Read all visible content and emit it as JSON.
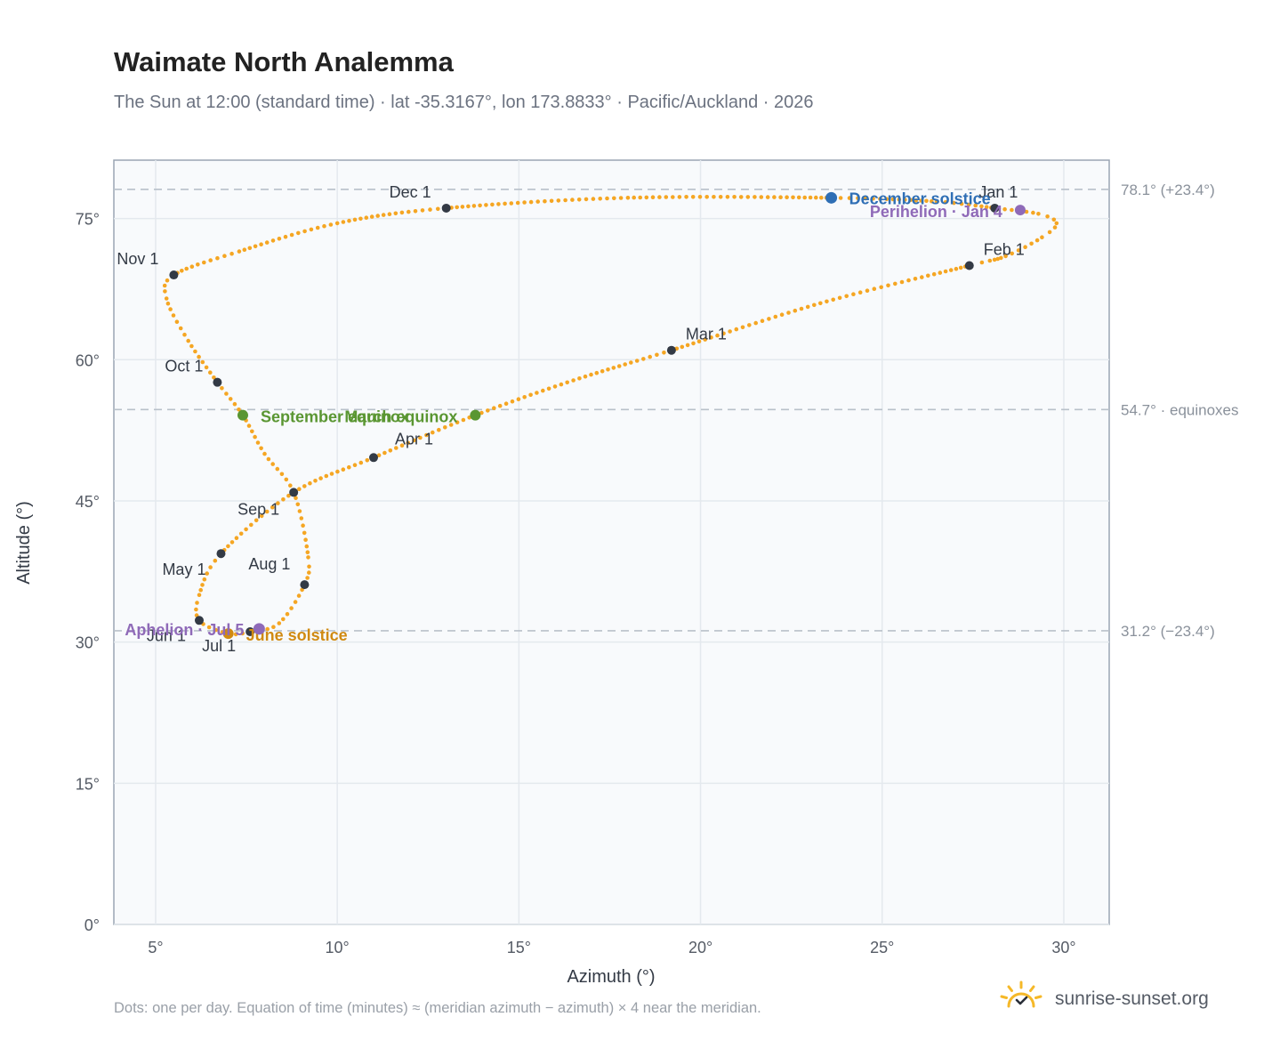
{
  "title": "Waimate North Analemma",
  "subtitle": "The Sun at 12:00 (standard time) · lat -35.3167°, lon 173.8833° · Pacific/Auckland · 2026",
  "footnote": "Dots: one per day. Equation of time (minutes) ≈ (meridian azimuth − azimuth) × 4 near the meridian.",
  "brand": {
    "name": "sunrise-sunset.org",
    "logo_icon": "sun-check-icon",
    "accent": "#f5b828"
  },
  "colors": {
    "analemma": "#f5a623",
    "month_marker": "#333a45",
    "equinox": "#5a9632",
    "december_solstice": "#2f6fb5",
    "june_solstice": "#d08a12",
    "perihelion_aphelion": "#8f6ab8",
    "reference_line": "#b9c1ca",
    "plot_bg": "#f8fafc",
    "grid": "#e4e9ee"
  },
  "chart_data": {
    "type": "scatter",
    "xlabel": "Azimuth (°)",
    "ylabel": "Altitude (°)",
    "xlim": [
      3.85,
      31.25
    ],
    "ylim": [
      0,
      81.2
    ],
    "xticks": [
      5,
      10,
      15,
      20,
      25,
      30
    ],
    "xtick_labels": [
      "5°",
      "10°",
      "15°",
      "20°",
      "25°",
      "30°"
    ],
    "yticks": [
      0,
      15,
      30,
      45,
      60,
      75
    ],
    "ytick_labels": [
      "0°",
      "15°",
      "30°",
      "45°",
      "60°",
      "75°"
    ],
    "grid": true,
    "series": [
      {
        "marker": "daily dots",
        "points": [
          {
            "x": 28.1,
            "y": 76.1
          },
          {
            "x": 29.3,
            "y": 75.5
          },
          {
            "x": 29.8,
            "y": 74.5
          },
          {
            "x": 29.4,
            "y": 73.0
          },
          {
            "x": 28.4,
            "y": 71.0
          },
          {
            "x": 27.4,
            "y": 70.0
          },
          {
            "x": 23.3,
            "y": 66.0
          },
          {
            "x": 19.2,
            "y": 61.0
          },
          {
            "x": 16.5,
            "y": 57.8
          },
          {
            "x": 13.8,
            "y": 54.1
          },
          {
            "x": 11.0,
            "y": 49.6
          },
          {
            "x": 8.8,
            "y": 45.9
          },
          {
            "x": 6.8,
            "y": 39.4
          },
          {
            "x": 6.2,
            "y": 35.0
          },
          {
            "x": 6.2,
            "y": 32.3
          },
          {
            "x": 7.0,
            "y": 30.9
          },
          {
            "x": 7.6,
            "y": 31.1
          },
          {
            "x": 8.4,
            "y": 32.0
          },
          {
            "x": 9.1,
            "y": 36.1
          },
          {
            "x": 9.2,
            "y": 39.0
          },
          {
            "x": 8.8,
            "y": 45.9
          },
          {
            "x": 8.0,
            "y": 50.0
          },
          {
            "x": 7.4,
            "y": 54.1
          },
          {
            "x": 6.7,
            "y": 57.6
          },
          {
            "x": 5.9,
            "y": 62.0
          },
          {
            "x": 5.3,
            "y": 66.5
          },
          {
            "x": 5.5,
            "y": 69.0
          },
          {
            "x": 7.3,
            "y": 71.5
          },
          {
            "x": 10.0,
            "y": 74.5
          },
          {
            "x": 13.0,
            "y": 76.1
          },
          {
            "x": 18.0,
            "y": 77.2
          },
          {
            "x": 23.6,
            "y": 77.2
          },
          {
            "x": 26.5,
            "y": 76.8
          },
          {
            "x": 28.1,
            "y": 76.1
          }
        ]
      }
    ],
    "month_markers": [
      {
        "label": "Jan 1",
        "x": 28.1,
        "y": 76.1
      },
      {
        "label": "Feb 1",
        "x": 27.4,
        "y": 70.0
      },
      {
        "label": "Mar 1",
        "x": 19.2,
        "y": 61.0
      },
      {
        "label": "Apr 1",
        "x": 11.0,
        "y": 49.6
      },
      {
        "label": "May 1",
        "x": 6.8,
        "y": 39.4
      },
      {
        "label": "Jun 1",
        "x": 6.2,
        "y": 32.3
      },
      {
        "label": "Jul 1",
        "x": 7.6,
        "y": 31.1
      },
      {
        "label": "Aug 1",
        "x": 9.1,
        "y": 36.1
      },
      {
        "label": "Sep 1",
        "x": 8.8,
        "y": 45.9
      },
      {
        "label": "Oct 1",
        "x": 6.7,
        "y": 57.6
      },
      {
        "label": "Nov 1",
        "x": 5.5,
        "y": 69.0
      },
      {
        "label": "Dec 1",
        "x": 13.0,
        "y": 76.1
      }
    ],
    "events": [
      {
        "label": "December solstice",
        "x": 23.6,
        "y": 77.2,
        "kind": "december_solstice"
      },
      {
        "label": "Perihelion · Jan 4",
        "x": 28.8,
        "y": 75.9,
        "kind": "perihelion_aphelion"
      },
      {
        "label": "March equinox",
        "x": 13.8,
        "y": 54.1,
        "kind": "equinox"
      },
      {
        "label": "September equinox",
        "x": 7.4,
        "y": 54.1,
        "kind": "equinox"
      },
      {
        "label": "June solstice",
        "x": 7.0,
        "y": 30.9,
        "kind": "june_solstice"
      },
      {
        "label": "Aphelion · Jul 5",
        "x": 7.85,
        "y": 31.4,
        "kind": "perihelion_aphelion"
      }
    ],
    "reference_lines": [
      {
        "y": 78.1,
        "label": "78.1° (+23.4°)"
      },
      {
        "y": 54.7,
        "label": "54.7° · equinoxes"
      },
      {
        "y": 31.2,
        "label": "31.2° (−23.4°)"
      }
    ]
  }
}
